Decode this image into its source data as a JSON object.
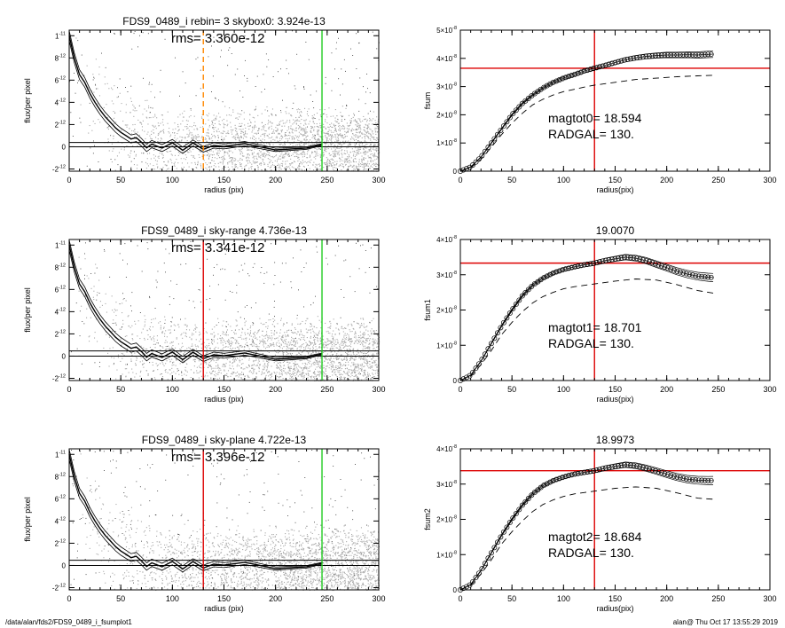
{
  "footer": {
    "path": "/data/alan/fds2/FDS9_0489_i_fsumplot1",
    "stamp": "alan@  Thu Oct 17 13:55:29 2019"
  },
  "colors": {
    "scatter": "#a8a8a8",
    "profile": "#000000",
    "red": "#dd0000",
    "green": "#22cc22",
    "orange": "#ff8800"
  },
  "chart_data": [
    {
      "type": "scatter",
      "title": "FDS9_0489_i rebin= 3    skybox0:  3.924e-13",
      "annotation": "rms= 3.360e-12",
      "xlabel": "radius (pix)",
      "ylabel": "flux/per pixel",
      "xlim": [
        0,
        300
      ],
      "ylim": [
        -2.2e-12,
        1.05e-11
      ],
      "xticks": [
        0,
        50,
        100,
        150,
        200,
        250,
        300
      ],
      "yticks": [
        {
          "v": 1e-11,
          "m": "1",
          "e": "-11"
        },
        {
          "v": 8e-12,
          "m": "8",
          "e": "-12"
        },
        {
          "v": 6e-12,
          "m": "6",
          "e": "-12"
        },
        {
          "v": 4e-12,
          "m": "4",
          "e": "-12"
        },
        {
          "v": 2e-12,
          "m": "2",
          "e": "-12"
        },
        {
          "v": 0,
          "m": "0",
          "e": ""
        },
        {
          "v": -2e-12,
          "m": "-2",
          "e": "-12"
        }
      ],
      "profile": {
        "r": [
          0,
          5,
          10,
          15,
          20,
          25,
          30,
          35,
          40,
          45,
          50,
          55,
          60,
          65,
          70,
          75,
          80,
          90,
          100,
          110,
          120,
          130,
          140,
          150,
          170,
          200,
          230,
          245
        ],
        "f": [
          1e-11,
          8e-12,
          6.5e-12,
          5.8e-12,
          4.8e-12,
          4e-12,
          3.3e-12,
          2.7e-12,
          2.2e-12,
          1.7e-12,
          1.3e-12,
          1e-12,
          7e-13,
          5e-13,
          3.5e-13,
          2.5e-13,
          1.5e-13,
          1e-13,
          5e-14,
          3e-14,
          2e-14,
          1e-14,
          0.0,
          0.0,
          0.0,
          0.0,
          0.0,
          0.0
        ]
      },
      "sky_lines": [
        0,
        3.9e-13
      ],
      "vlines": [
        {
          "x": 130,
          "color": "orange",
          "dashed": true
        },
        {
          "x": 245,
          "color": "green",
          "dashed": false
        }
      ]
    },
    {
      "type": "line",
      "title": "",
      "labels": [
        "magtot0=  18.594",
        "RADGAL=     130."
      ],
      "xlabel": "radius(pix)",
      "ylabel": "fsum",
      "xlim": [
        0,
        300
      ],
      "ylim": [
        0,
        5e-08
      ],
      "xticks": [
        0,
        50,
        100,
        150,
        200,
        250,
        300
      ],
      "yticks": [
        {
          "v": 0,
          "m": "0",
          "e": ""
        },
        {
          "v": 1e-08,
          "m": "1×10",
          "e": "-8"
        },
        {
          "v": 2e-08,
          "m": "2×10",
          "e": "-8"
        },
        {
          "v": 3e-08,
          "m": "3×10",
          "e": "-8"
        },
        {
          "v": 4e-08,
          "m": "4×10",
          "e": "-8"
        },
        {
          "v": 5e-08,
          "m": "5×10",
          "e": "-8"
        }
      ],
      "series": [
        {
          "style": "circles",
          "x": [
            0,
            10,
            20,
            30,
            40,
            50,
            60,
            70,
            80,
            90,
            100,
            110,
            120,
            130,
            140,
            150,
            160,
            170,
            180,
            190,
            200,
            210,
            220,
            230,
            240,
            245
          ],
          "y": [
            0,
            1.5e-09,
            5e-09,
            1e-08,
            1.5e-08,
            2e-08,
            2.4e-08,
            2.7e-08,
            2.95e-08,
            3.15e-08,
            3.3e-08,
            3.42e-08,
            3.55e-08,
            3.65e-08,
            3.75e-08,
            3.85e-08,
            3.95e-08,
            4.02e-08,
            4.07e-08,
            4.1e-08,
            4.12e-08,
            4.12e-08,
            4.13e-08,
            4.12e-08,
            4.14e-08,
            4.15e-08
          ]
        },
        {
          "style": "dashed",
          "x": [
            0,
            10,
            20,
            30,
            40,
            50,
            60,
            70,
            80,
            90,
            100,
            110,
            120,
            130,
            150,
            170,
            190,
            210,
            230,
            245
          ],
          "y": [
            0,
            1.2e-09,
            4.2e-09,
            8.5e-09,
            1.3e-08,
            1.7e-08,
            2.05e-08,
            2.35e-08,
            2.55e-08,
            2.7e-08,
            2.82e-08,
            2.9e-08,
            2.98e-08,
            3.05e-08,
            3.15e-08,
            3.25e-08,
            3.3e-08,
            3.35e-08,
            3.38e-08,
            3.4e-08
          ]
        }
      ],
      "crosshair": {
        "x": 130,
        "y": 3.65e-08
      }
    },
    {
      "type": "scatter",
      "title": "FDS9_0489_i sky-range  4.736e-13",
      "annotation": "rms= 3.341e-12",
      "xlabel": "radius (pix)",
      "ylabel": "flux/per pixel",
      "xlim": [
        0,
        300
      ],
      "ylim": [
        -2.2e-12,
        1.05e-11
      ],
      "xticks": [
        0,
        50,
        100,
        150,
        200,
        250,
        300
      ],
      "yticks": [
        {
          "v": 1e-11,
          "m": "1",
          "e": "-11"
        },
        {
          "v": 8e-12,
          "m": "8",
          "e": "-12"
        },
        {
          "v": 6e-12,
          "m": "6",
          "e": "-12"
        },
        {
          "v": 4e-12,
          "m": "4",
          "e": "-12"
        },
        {
          "v": 2e-12,
          "m": "2",
          "e": "-12"
        },
        {
          "v": 0,
          "m": "0",
          "e": ""
        },
        {
          "v": -2e-12,
          "m": "-2",
          "e": "-12"
        }
      ],
      "profile": {
        "r": [
          0,
          5,
          10,
          15,
          20,
          25,
          30,
          35,
          40,
          45,
          50,
          55,
          60,
          65,
          70,
          75,
          80,
          90,
          100,
          110,
          120,
          130,
          140,
          150,
          170,
          200,
          230,
          245
        ],
        "f": [
          1e-11,
          8e-12,
          6.5e-12,
          5.8e-12,
          4.8e-12,
          4e-12,
          3.3e-12,
          2.7e-12,
          2.2e-12,
          1.7e-12,
          1.3e-12,
          1e-12,
          7e-13,
          5e-13,
          3.5e-13,
          2.5e-13,
          1.5e-13,
          1e-13,
          5e-14,
          3e-14,
          2e-14,
          1e-14,
          0.0,
          0.0,
          0.0,
          0.0,
          0.0,
          0.0
        ]
      },
      "sky_lines": [
        0,
        4.7e-13
      ],
      "vlines": [
        {
          "x": 130,
          "color": "red",
          "dashed": false
        },
        {
          "x": 245,
          "color": "green",
          "dashed": false
        }
      ]
    },
    {
      "type": "line",
      "title": "19.0070",
      "labels": [
        "magtot1=  18.701",
        "RADGAL=     130."
      ],
      "xlabel": "radius(pix)",
      "ylabel": "fsum1",
      "xlim": [
        0,
        300
      ],
      "ylim": [
        0,
        4e-08
      ],
      "xticks": [
        0,
        50,
        100,
        150,
        200,
        250,
        300
      ],
      "yticks": [
        {
          "v": 0,
          "m": "0",
          "e": ""
        },
        {
          "v": 1e-08,
          "m": "1×10",
          "e": "-8"
        },
        {
          "v": 2e-08,
          "m": "2×10",
          "e": "-8"
        },
        {
          "v": 3e-08,
          "m": "3×10",
          "e": "-8"
        },
        {
          "v": 4e-08,
          "m": "4×10",
          "e": "-8"
        }
      ],
      "series": [
        {
          "style": "circles",
          "x": [
            0,
            10,
            20,
            30,
            40,
            50,
            60,
            70,
            80,
            90,
            100,
            110,
            120,
            130,
            140,
            150,
            160,
            170,
            180,
            190,
            200,
            210,
            220,
            230,
            240,
            245
          ],
          "y": [
            0,
            1.5e-09,
            5.5e-09,
            1.05e-08,
            1.55e-08,
            2e-08,
            2.4e-08,
            2.7e-08,
            2.9e-08,
            3.05e-08,
            3.15e-08,
            3.22e-08,
            3.28e-08,
            3.33e-08,
            3.4e-08,
            3.45e-08,
            3.5e-08,
            3.47e-08,
            3.4e-08,
            3.3e-08,
            3.2e-08,
            3.1e-08,
            3.02e-08,
            2.96e-08,
            2.93e-08,
            2.92e-08
          ]
        },
        {
          "style": "dashed",
          "x": [
            0,
            10,
            20,
            30,
            40,
            50,
            60,
            70,
            80,
            90,
            100,
            110,
            120,
            130,
            150,
            170,
            190,
            210,
            230,
            245
          ],
          "y": [
            0,
            1.2e-09,
            4.5e-09,
            8.5e-09,
            1.3e-08,
            1.65e-08,
            1.95e-08,
            2.2e-08,
            2.38e-08,
            2.5e-08,
            2.6e-08,
            2.66e-08,
            2.7e-08,
            2.74e-08,
            2.82e-08,
            2.88e-08,
            2.85e-08,
            2.72e-08,
            2.55e-08,
            2.48e-08
          ]
        }
      ],
      "crosshair": {
        "x": 130,
        "y": 3.33e-08
      }
    },
    {
      "type": "scatter",
      "title": "FDS9_0489_i sky-plane  4.722e-13",
      "annotation": "rms= 3.396e-12",
      "xlabel": "radius (pix)",
      "ylabel": "flux/per pixel",
      "xlim": [
        0,
        300
      ],
      "ylim": [
        -2.2e-12,
        1.05e-11
      ],
      "xticks": [
        0,
        50,
        100,
        150,
        200,
        250,
        300
      ],
      "yticks": [
        {
          "v": 1e-11,
          "m": "1",
          "e": "-11"
        },
        {
          "v": 8e-12,
          "m": "8",
          "e": "-12"
        },
        {
          "v": 6e-12,
          "m": "6",
          "e": "-12"
        },
        {
          "v": 4e-12,
          "m": "4",
          "e": "-12"
        },
        {
          "v": 2e-12,
          "m": "2",
          "e": "-12"
        },
        {
          "v": 0,
          "m": "0",
          "e": ""
        },
        {
          "v": -2e-12,
          "m": "-2",
          "e": "-12"
        }
      ],
      "profile": {
        "r": [
          0,
          5,
          10,
          15,
          20,
          25,
          30,
          35,
          40,
          45,
          50,
          55,
          60,
          65,
          70,
          75,
          80,
          90,
          100,
          110,
          120,
          130,
          140,
          150,
          170,
          200,
          230,
          245
        ],
        "f": [
          1e-11,
          8e-12,
          6.5e-12,
          5.8e-12,
          4.8e-12,
          4e-12,
          3.3e-12,
          2.7e-12,
          2.2e-12,
          1.7e-12,
          1.3e-12,
          1e-12,
          7e-13,
          5e-13,
          3.5e-13,
          2.5e-13,
          1.5e-13,
          1e-13,
          5e-14,
          3e-14,
          2e-14,
          1e-14,
          0.0,
          0.0,
          0.0,
          0.0,
          0.0,
          0.0
        ]
      },
      "sky_lines": [
        0,
        4.7e-13
      ],
      "vlines": [
        {
          "x": 130,
          "color": "red",
          "dashed": false
        },
        {
          "x": 245,
          "color": "green",
          "dashed": false
        }
      ]
    },
    {
      "type": "line",
      "title": "18.9973",
      "labels": [
        "magtot2=  18.684",
        "RADGAL=     130."
      ],
      "xlabel": "radius(pix)",
      "ylabel": "fsum2",
      "xlim": [
        0,
        300
      ],
      "ylim": [
        0,
        4e-08
      ],
      "xticks": [
        0,
        50,
        100,
        150,
        200,
        250,
        300
      ],
      "yticks": [
        {
          "v": 0,
          "m": "0",
          "e": ""
        },
        {
          "v": 1e-08,
          "m": "1×10",
          "e": "-8"
        },
        {
          "v": 2e-08,
          "m": "2×10",
          "e": "-8"
        },
        {
          "v": 3e-08,
          "m": "3×10",
          "e": "-8"
        },
        {
          "v": 4e-08,
          "m": "4×10",
          "e": "-8"
        }
      ],
      "series": [
        {
          "style": "circles",
          "x": [
            0,
            10,
            20,
            30,
            40,
            50,
            60,
            70,
            80,
            90,
            100,
            110,
            120,
            130,
            140,
            150,
            160,
            170,
            180,
            190,
            200,
            210,
            220,
            230,
            240,
            245
          ],
          "y": [
            0,
            1.5e-09,
            5.5e-09,
            1.05e-08,
            1.55e-08,
            2e-08,
            2.4e-08,
            2.72e-08,
            2.95e-08,
            3.1e-08,
            3.2e-08,
            3.28e-08,
            3.33e-08,
            3.38e-08,
            3.45e-08,
            3.5e-08,
            3.55e-08,
            3.52e-08,
            3.45e-08,
            3.37e-08,
            3.28e-08,
            3.2e-08,
            3.14e-08,
            3.11e-08,
            3.1e-08,
            3.1e-08
          ]
        },
        {
          "style": "dashed",
          "x": [
            0,
            10,
            20,
            30,
            40,
            50,
            60,
            70,
            80,
            90,
            100,
            110,
            120,
            130,
            150,
            170,
            190,
            210,
            230,
            245
          ],
          "y": [
            0,
            1.2e-09,
            4.5e-09,
            8.5e-09,
            1.3e-08,
            1.65e-08,
            1.95e-08,
            2.22e-08,
            2.42e-08,
            2.55e-08,
            2.65e-08,
            2.72e-08,
            2.76e-08,
            2.8e-08,
            2.88e-08,
            2.92e-08,
            2.88e-08,
            2.75e-08,
            2.6e-08,
            2.57e-08
          ]
        }
      ],
      "crosshair": {
        "x": 130,
        "y": 3.38e-08
      }
    }
  ]
}
